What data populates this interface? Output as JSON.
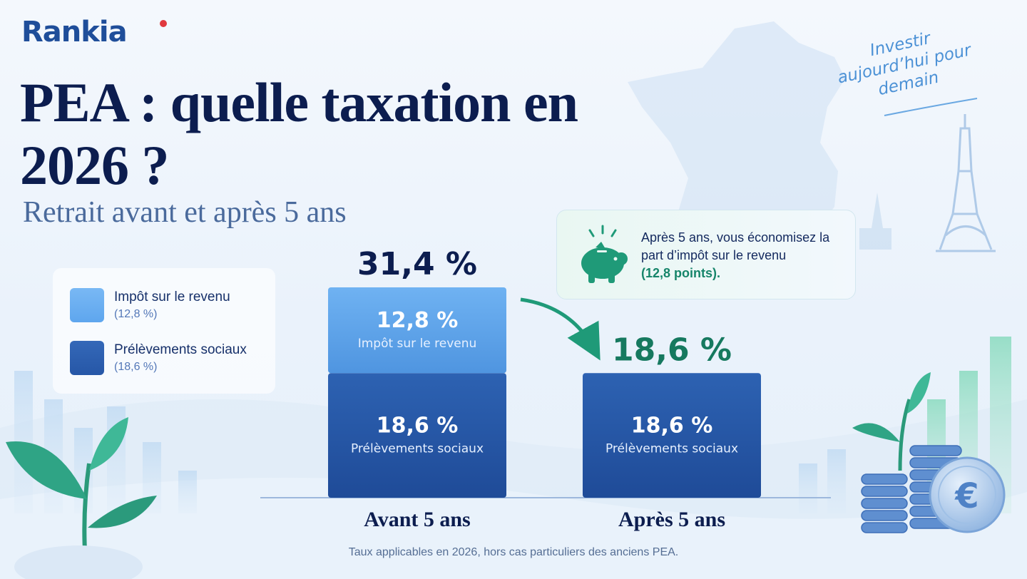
{
  "brand": {
    "name": "Rankia"
  },
  "title": "PEA : quelle taxation en 2026 ?",
  "subtitle": "Retrait avant et après 5 ans",
  "slogan": "Investir aujourd’hui pour demain",
  "legend": [
    {
      "label": "Impôt sur le revenu",
      "value": "(12,8 %)",
      "color": "#5ea6ee"
    },
    {
      "label": "Prélèvements sociaux",
      "value": "(18,6 %)",
      "color": "#2657a7"
    }
  ],
  "callout": {
    "line": "Après 5 ans, vous économisez la part d’impôt sur le revenu",
    "highlight": "(12,8 points).",
    "icon": "piggy-bank-icon"
  },
  "chart_data": {
    "type": "bar",
    "stacked": true,
    "categories": [
      "Avant 5 ans",
      "Après 5 ans"
    ],
    "series": [
      {
        "name": "Prélèvements sociaux",
        "values": [
          18.6,
          18.6
        ],
        "labels": [
          "18,6 %",
          "18,6 %"
        ],
        "color": "#2657a7"
      },
      {
        "name": "Impôt sur le revenu",
        "values": [
          12.8,
          0
        ],
        "labels": [
          "12,8 %",
          ""
        ],
        "color": "#5ea6ee"
      }
    ],
    "totals": [
      "31,4 %",
      "18,6 %"
    ],
    "total_colors": [
      "#0c1d4f",
      "#16795f"
    ],
    "ylim": [
      0,
      31.4
    ],
    "grid": false
  },
  "footnote": "Taux applicables en 2026, hors cas particuliers des anciens PEA.",
  "colors": {
    "accent_green": "#16856a",
    "navy": "#0c1d4f",
    "bar_dark": "#2657a7",
    "bar_light": "#5ea6ee"
  }
}
